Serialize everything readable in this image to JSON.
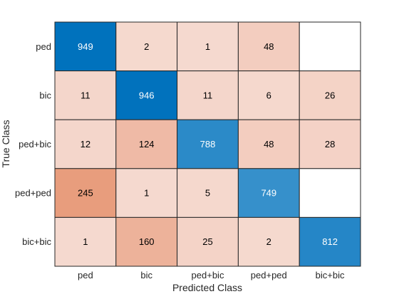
{
  "chart_data": {
    "type": "heatmap",
    "subtype": "confusion-matrix",
    "xlabel": "Predicted Class",
    "ylabel": "True Class",
    "classes": [
      "ped",
      "bic",
      "ped+bic",
      "ped+ped",
      "bic+bic"
    ],
    "x_tick_labels": [
      "ped",
      "bic",
      "ped+bic",
      "ped+ped",
      "bic+bic"
    ],
    "y_tick_labels": [
      "ped",
      "bic",
      "ped+bic",
      "ped+ped",
      "bic+bic"
    ],
    "matrix": [
      [
        949,
        2,
        1,
        48,
        null
      ],
      [
        11,
        946,
        11,
        6,
        26
      ],
      [
        12,
        124,
        788,
        48,
        28
      ],
      [
        245,
        1,
        5,
        749,
        null
      ],
      [
        1,
        160,
        25,
        2,
        812
      ]
    ],
    "colors": {
      "diagonal_high": "#0072bd",
      "off_diagonal_high": "#d95319",
      "off_diagonal_low": "#f5d9cf",
      "empty_cell": "#ffffff",
      "text_dark": "#000000",
      "text_light": "#ffffff"
    },
    "grid": true,
    "legend": "none"
  }
}
